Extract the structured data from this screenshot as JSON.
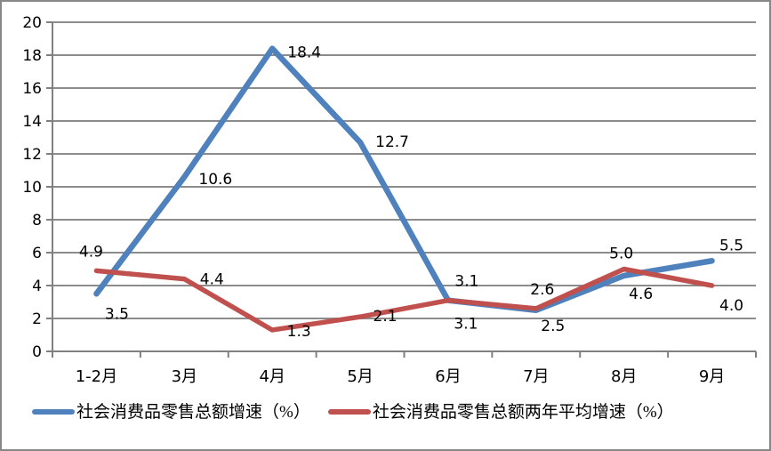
{
  "chart_data": {
    "type": "line",
    "title": "",
    "categories": [
      "1-2月",
      "3月",
      "4月",
      "5月",
      "6月",
      "7月",
      "8月",
      "9月"
    ],
    "series": [
      {
        "name": "社会消费品零售总额增速（%）",
        "color": "#4F81BD",
        "values": [
          3.5,
          10.6,
          18.4,
          12.7,
          3.1,
          2.5,
          4.6,
          5.5
        ],
        "label_offsets": [
          [
            23,
            22
          ],
          [
            35,
            2
          ],
          [
            36,
            4
          ],
          [
            36,
            -1
          ],
          [
            20,
            26
          ],
          [
            19,
            17
          ],
          [
            19,
            20
          ],
          [
            22,
            -18
          ]
        ]
      },
      {
        "name": "社会消费品零售总额两年平均增速（%）",
        "color": "#C0504D",
        "values": [
          4.9,
          4.4,
          1.3,
          2.1,
          3.1,
          2.6,
          5.0,
          4.0
        ],
        "label_offsets": [
          [
            -6,
            -22
          ],
          [
            31,
            0
          ],
          [
            30,
            1
          ],
          [
            28,
            -1
          ],
          [
            21,
            -22
          ],
          [
            7,
            -22
          ],
          [
            -3,
            -18
          ],
          [
            22,
            22
          ]
        ]
      }
    ],
    "ylim": [
      0,
      20
    ],
    "ytick_step": 2,
    "yticks": [
      0,
      2,
      4,
      6,
      8,
      10,
      12,
      14,
      16,
      18,
      20
    ],
    "grid": true,
    "legend_position": "bottom",
    "colors": {
      "axis": "#808080",
      "grid": "#8C8C8C",
      "label": "#000000",
      "background": "#FFFFFF",
      "border": "#878787"
    }
  }
}
